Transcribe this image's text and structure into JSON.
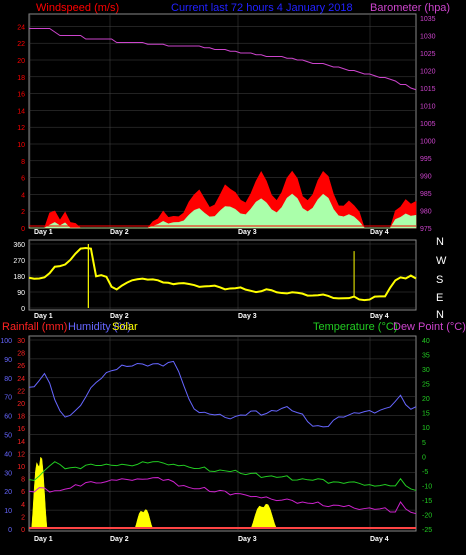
{
  "header": {
    "wind_title": "Windspeed (m/s)",
    "center_title": "Current last 72 hours 4 January 2018",
    "baro_title": "Barometer (hpa)",
    "rain_title": "Rainfall (mm)",
    "hum_title": "Humidity (%)",
    "solar_title": "Solar",
    "temp_title": "Temperature (°C)",
    "dew_title": "Dew Point (°C)"
  },
  "colors": {
    "wind": "#ff0000",
    "gust": "#ff0000",
    "wind_avg": "#aaffaa",
    "barometer": "#cc44cc",
    "direction": "#ffff00",
    "rain": "#ff4444",
    "humidity": "#6666ff",
    "solar": "#ffff00",
    "temperature": "#22cc22",
    "dewpoint": "#cc22cc",
    "grid": "#444444",
    "frame": "#888888"
  },
  "chart_data": [
    {
      "type": "area",
      "panel": "wind-barometer",
      "x_labels": [
        "Day 1",
        "Day 2",
        "Day 3",
        "Day 4"
      ],
      "left_axis": {
        "label": "Windspeed (m/s)",
        "ylim": [
          0,
          25
        ],
        "ticks": [
          0,
          2,
          4,
          6,
          8,
          10,
          12,
          14,
          16,
          18,
          20,
          22,
          24
        ]
      },
      "right_axis": {
        "label": "Barometer (hpa)",
        "ylim": [
          975,
          1035
        ],
        "ticks": [
          975,
          980,
          985,
          990,
          995,
          1000,
          1005,
          1010,
          1015,
          1020,
          1025,
          1030,
          1035
        ]
      },
      "x": [
        0,
        1,
        2,
        3,
        4,
        5,
        6,
        7,
        8,
        9,
        10,
        11,
        12,
        13,
        14,
        15,
        16,
        17,
        18,
        19,
        20,
        21,
        22,
        23,
        24,
        25,
        26,
        27,
        28,
        29,
        30,
        31,
        32,
        33,
        34,
        35,
        36,
        37,
        38,
        39,
        40,
        41,
        42,
        43,
        44,
        45,
        46,
        47,
        48,
        49,
        50,
        51,
        52,
        53,
        54,
        55,
        56,
        57,
        58,
        59,
        60,
        61,
        62,
        63,
        64,
        65,
        66,
        67,
        68,
        69,
        70,
        71,
        72,
        73,
        74,
        75
      ],
      "series": [
        {
          "name": "Windspeed",
          "values": [
            0,
            0,
            0,
            0,
            2.5,
            3,
            1,
            1.5,
            0.5,
            0.5,
            0,
            0,
            0,
            0,
            0,
            0,
            0,
            0,
            0,
            0,
            0,
            0,
            0,
            0,
            1,
            1,
            1.5,
            1,
            1.5,
            2,
            2.5,
            3,
            3,
            3.5,
            3.5,
            3.5,
            4,
            4,
            4,
            3.5,
            4,
            4.5,
            4.5,
            4.5,
            4.5,
            5,
            5,
            5,
            5,
            5,
            5,
            5,
            5,
            4.5,
            5,
            5,
            5,
            5,
            5,
            4.5,
            4,
            3.5,
            3,
            2,
            1.5,
            0,
            0,
            0,
            0,
            0,
            0,
            2,
            3.5,
            5,
            3,
            2.5
          ]
        },
        {
          "name": "Average",
          "values": [
            0,
            0,
            0,
            0,
            0.5,
            1,
            0.3,
            0.5,
            0,
            0,
            0,
            0,
            0,
            0,
            0,
            0,
            0,
            0,
            0,
            0,
            0,
            0,
            0,
            0,
            0.3,
            0.4,
            0.6,
            0.4,
            0.7,
            1,
            1.2,
            1.5,
            1.6,
            1.8,
            1.8,
            1.9,
            2,
            2.1,
            2,
            1.9,
            2.1,
            2.3,
            2.4,
            2.5,
            2.5,
            2.6,
            2.7,
            2.8,
            2.8,
            2.9,
            3,
            3,
            3,
            2.8,
            3,
            3,
            3,
            3,
            2.9,
            2.5,
            2.2,
            1.8,
            1.5,
            1,
            0.6,
            0,
            0,
            0,
            0,
            0,
            0,
            1,
            1.8,
            2.5,
            1.5,
            1.2
          ]
        },
        {
          "name": "Barometer",
          "values": [
            1032,
            1032,
            1032,
            1032,
            1032,
            1031,
            1030,
            1030,
            1030,
            1030,
            1030,
            1029,
            1029,
            1029,
            1029,
            1029,
            1029,
            1028,
            1028,
            1028,
            1028,
            1028,
            1028,
            1027.5,
            1027.5,
            1027.5,
            1027.5,
            1027,
            1027,
            1027,
            1027,
            1027,
            1027,
            1027,
            1026.5,
            1026.5,
            1026,
            1026,
            1026,
            1025.5,
            1025.5,
            1025,
            1025,
            1025,
            1024.5,
            1024.5,
            1024,
            1024,
            1024,
            1024,
            1023.5,
            1023.5,
            1023,
            1023,
            1022.5,
            1022,
            1022,
            1022,
            1021.5,
            1021,
            1021,
            1020.5,
            1020,
            1020,
            1019.5,
            1019,
            1019,
            1018.5,
            1018,
            1018,
            1017.5,
            1017,
            1016,
            1016,
            1015,
            1014.5
          ]
        }
      ]
    },
    {
      "type": "scatter",
      "panel": "wind-direction",
      "x_labels": [
        "Day 1",
        "Day 2",
        "Day 3",
        "Day 4"
      ],
      "left_axis": {
        "ylim": [
          0,
          360
        ],
        "ticks": [
          0,
          90,
          180,
          270,
          360
        ]
      },
      "right_labels": [
        "N",
        "W",
        "S",
        "E",
        "N"
      ],
      "x": [
        0,
        1,
        2,
        3,
        4,
        5,
        6,
        7,
        8,
        9,
        10,
        11,
        12,
        13,
        14,
        15,
        16,
        17,
        18,
        19,
        20,
        21,
        22,
        23,
        24,
        25,
        26,
        27,
        28,
        29,
        30,
        31,
        32,
        33,
        34,
        35,
        36,
        37,
        38,
        39,
        40,
        41,
        42,
        43,
        44,
        45,
        46,
        47,
        48,
        49,
        50,
        51,
        52,
        53,
        54,
        55,
        56,
        57,
        58,
        59,
        60,
        61,
        62,
        63,
        64,
        65,
        66,
        67,
        68,
        69,
        70,
        71,
        72,
        73,
        74,
        75
      ],
      "series": [
        {
          "name": "Direction",
          "values": [
            170,
            170,
            170,
            170,
            190,
            230,
            240,
            250,
            270,
            300,
            330,
            340,
            340,
            180,
            180,
            170,
            120,
            110,
            130,
            140,
            150,
            160,
            170,
            165,
            160,
            150,
            140,
            145,
            140,
            140,
            135,
            130,
            130,
            125,
            125,
            120,
            120,
            115,
            110,
            115,
            110,
            110,
            100,
            100,
            95,
            95,
            100,
            95,
            90,
            90,
            85,
            85,
            80,
            80,
            75,
            75,
            70,
            70,
            65,
            60,
            60,
            55,
            50,
            60,
            50,
            50,
            50,
            60,
            60,
            65,
            120,
            160,
            170,
            160,
            180,
            170
          ]
        }
      ]
    },
    {
      "type": "line",
      "panel": "rain-humidity-temperature",
      "x_labels": [
        "Day 1",
        "Day 2",
        "Day 3",
        "Day 4"
      ],
      "humidity_axis": {
        "label": "Humidity (%)",
        "ylim": [
          0,
          100
        ],
        "ticks": [
          0,
          10,
          20,
          30,
          40,
          50,
          60,
          70,
          80,
          90,
          100
        ]
      },
      "rain_axis": {
        "label": "Rainfall (mm)",
        "ylim": [
          0,
          30
        ],
        "ticks": [
          0,
          2,
          4,
          6,
          8,
          10,
          12,
          14,
          16,
          18,
          20,
          22,
          24,
          26,
          28,
          30
        ]
      },
      "temp_axis": {
        "label": "Temperature (°C)",
        "ylim": [
          -25,
          40
        ],
        "ticks": [
          -25,
          -20,
          -15,
          -10,
          -5,
          0,
          5,
          10,
          15,
          20,
          25,
          30,
          35,
          40
        ]
      },
      "x": [
        0,
        1,
        2,
        3,
        4,
        5,
        6,
        7,
        8,
        9,
        10,
        11,
        12,
        13,
        14,
        15,
        16,
        17,
        18,
        19,
        20,
        21,
        22,
        23,
        24,
        25,
        26,
        27,
        28,
        29,
        30,
        31,
        32,
        33,
        34,
        35,
        36,
        37,
        38,
        39,
        40,
        41,
        42,
        43,
        44,
        45,
        46,
        47,
        48,
        49,
        50,
        51,
        52,
        53,
        54,
        55,
        56,
        57,
        58,
        59,
        60,
        61,
        62,
        63,
        64,
        65,
        66,
        67,
        68,
        69,
        70,
        71,
        72,
        73,
        74,
        75
      ],
      "series": [
        {
          "name": "Humidity",
          "values": [
            75,
            76,
            78,
            82,
            78,
            68,
            62,
            60,
            60,
            62,
            66,
            70,
            74,
            78,
            80,
            82,
            84,
            85,
            86,
            86,
            87,
            87,
            87,
            87,
            87,
            87,
            87,
            88,
            88,
            84,
            76,
            68,
            64,
            62,
            61,
            61,
            61,
            60,
            59,
            59,
            59,
            60,
            61,
            62,
            62,
            61,
            61,
            62,
            63,
            64,
            64,
            63,
            62,
            60,
            57,
            55,
            54,
            54,
            55,
            57,
            59,
            60,
            60,
            61,
            62,
            62,
            62,
            62,
            63,
            63,
            65,
            68,
            70,
            66,
            64,
            64
          ]
        },
        {
          "name": "Temperature",
          "values": [
            -8,
            -8,
            -7,
            -5,
            -3,
            -2,
            -3,
            -4,
            -4,
            -4,
            -4,
            -3,
            -3,
            -3,
            -3,
            -3,
            -3,
            -3,
            -3,
            -3,
            -3,
            -3,
            -2,
            -2,
            -2,
            -2,
            -2,
            -3,
            -3,
            -3,
            -3,
            -4,
            -4,
            -4,
            -4,
            -5,
            -5,
            -5,
            -5,
            -5,
            -5,
            -6,
            -6,
            -6,
            -6,
            -7,
            -7,
            -7,
            -7,
            -7,
            -7,
            -8,
            -8,
            -8,
            -8,
            -8,
            -8,
            -8,
            -9,
            -9,
            -9,
            -9,
            -9,
            -9,
            -9,
            -10,
            -10,
            -10,
            -10,
            -10,
            -10,
            -10,
            -8,
            -10,
            -11,
            -12
          ]
        },
        {
          "name": "Dew Point",
          "values": [
            -12,
            -12,
            -11,
            -11,
            -12,
            -12,
            -12,
            -11,
            -11,
            -10,
            -10,
            -9,
            -9,
            -9,
            -9,
            -9,
            -8,
            -8,
            -8,
            -8,
            -8,
            -8,
            -8,
            -7.5,
            -7.5,
            -7.5,
            -8,
            -8,
            -9,
            -10,
            -10,
            -11,
            -11,
            -11,
            -11,
            -12,
            -12,
            -12,
            -12,
            -13,
            -13,
            -13,
            -13,
            -14,
            -14,
            -14,
            -14,
            -15,
            -15,
            -15,
            -15,
            -15,
            -16,
            -16,
            -16,
            -16,
            -16,
            -17,
            -17,
            -17,
            -17,
            -17,
            -17,
            -18,
            -18,
            -18,
            -18,
            -18,
            -18,
            -18,
            -19,
            -19,
            -16,
            -18,
            -19,
            -20
          ]
        },
        {
          "name": "Solar",
          "values": [
            0,
            0,
            0,
            10,
            14,
            11,
            6,
            3,
            1,
            0,
            0,
            0,
            0,
            0,
            0,
            0,
            0,
            0,
            0,
            0,
            0,
            0,
            0,
            0,
            0,
            0,
            0,
            0,
            0,
            0,
            0,
            0,
            0,
            0,
            0,
            0,
            0,
            0,
            0,
            0,
            0,
            0,
            0,
            0,
            0,
            0,
            0,
            0,
            0,
            0,
            0,
            0,
            0,
            0,
            0,
            0,
            0,
            0,
            0,
            0,
            0,
            0,
            0,
            0,
            0,
            0,
            0,
            0,
            0,
            0,
            0,
            0,
            0,
            0,
            0,
            0
          ]
        },
        {
          "name": "Rainfall",
          "values": [
            0,
            0,
            0,
            0,
            0,
            0,
            0,
            0,
            0,
            0,
            0,
            0,
            0,
            0,
            0,
            0,
            0,
            0,
            0,
            0,
            0,
            0,
            0,
            0,
            0,
            0,
            0,
            0,
            0,
            0,
            0,
            0,
            0,
            0,
            0,
            0,
            0,
            0,
            0,
            0,
            0,
            0,
            0,
            0,
            0,
            0,
            0,
            0,
            0,
            0,
            0,
            0,
            0,
            0,
            0,
            0,
            0,
            0,
            0,
            0,
            0,
            0,
            0,
            0,
            0,
            0,
            0,
            0,
            0,
            0,
            0,
            0,
            0,
            0,
            0,
            0
          ]
        }
      ],
      "solar_bursts": [
        {
          "start": 0.5,
          "end": 3.5,
          "peak": 13
        },
        {
          "start": 20.5,
          "end": 24.0,
          "peak": 3.5
        },
        {
          "start": 43.0,
          "end": 48.0,
          "peak": 4.5
        }
      ]
    }
  ]
}
